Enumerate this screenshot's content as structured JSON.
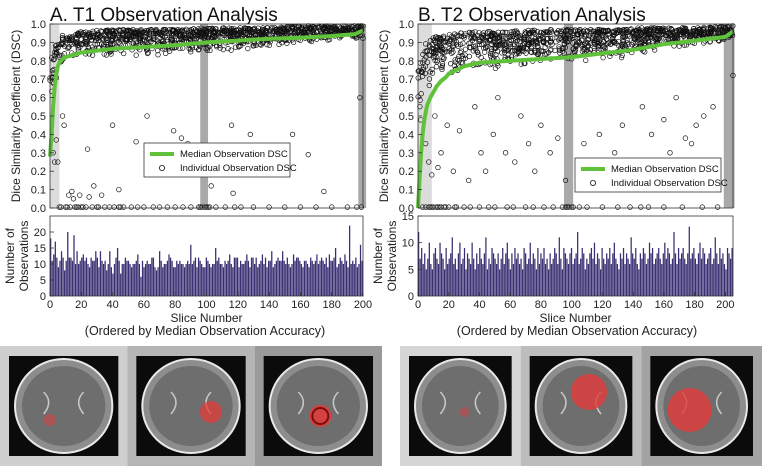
{
  "figure": {
    "sub_caption": "(Ordered by Median Observation Accuracy)"
  },
  "chart_data": [
    {
      "panel": "A",
      "type": "scatter",
      "title": "A. T1 Observation Analysis",
      "xlabel": "Slice Number",
      "ylabel": "Dice Similarity Coefficient (DSC)",
      "xlim": [
        0,
        200
      ],
      "ylim": [
        0,
        1.0
      ],
      "xticks": [
        0,
        20,
        40,
        60,
        80,
        100,
        120,
        140,
        160,
        180,
        200
      ],
      "yticks": [
        0,
        0.1,
        0.2,
        0.3,
        0.4,
        0.5,
        0.6,
        0.7,
        0.8,
        0.9,
        1.0
      ],
      "legend": [
        "Median Observation DSC",
        "Individual Observation DSC"
      ],
      "legend_position": "center",
      "series_colors": {
        "median": "#5fc23a",
        "points": "#111111"
      },
      "shaded_slices": [
        [
          0,
          6
        ],
        [
          96,
          101
        ],
        [
          197,
          202
        ]
      ],
      "median_curve": {
        "x": [
          0,
          1,
          2,
          3,
          4,
          5,
          6,
          8,
          10,
          14,
          20,
          30,
          40,
          60,
          80,
          100,
          120,
          140,
          160,
          180,
          195,
          200
        ],
        "y": [
          0.28,
          0.4,
          0.55,
          0.66,
          0.73,
          0.77,
          0.79,
          0.81,
          0.82,
          0.83,
          0.845,
          0.855,
          0.865,
          0.875,
          0.885,
          0.9,
          0.91,
          0.92,
          0.925,
          0.935,
          0.945,
          0.965
        ]
      },
      "outliers": {
        "x": [
          2,
          3,
          4,
          5,
          8,
          9,
          12,
          14,
          15,
          19,
          24,
          25,
          28,
          33,
          40,
          44,
          55,
          62,
          72,
          79,
          84,
          88,
          103,
          116,
          117,
          128,
          155,
          165,
          175,
          198
        ],
        "y": [
          0.3,
          0.25,
          0.37,
          0.25,
          0.5,
          0.45,
          0.07,
          0.09,
          0.05,
          0.07,
          0.32,
          0.06,
          0.12,
          0.07,
          0.45,
          0.1,
          0.36,
          0.5,
          0.2,
          0.42,
          0.38,
          0.35,
          0.12,
          0.45,
          0.08,
          0.4,
          0.4,
          0.29,
          0.09,
          0.6
        ]
      },
      "zero_points_x": [
        6,
        7,
        10,
        11,
        13,
        16,
        17,
        18,
        20,
        21,
        23,
        27,
        30,
        31,
        35,
        38,
        41,
        44,
        45,
        47,
        52,
        56,
        60,
        66,
        70,
        75,
        80,
        85,
        90,
        95,
        96,
        97,
        99,
        100,
        101,
        102,
        106,
        112,
        118,
        122,
        130,
        140,
        150,
        160,
        170,
        180,
        190,
        196,
        199
      ],
      "scatter_density": {
        "x": [
          0,
          5,
          10,
          20,
          40,
          60,
          80,
          100,
          120,
          140,
          160,
          180,
          200
        ],
        "lower": [
          0.3,
          0.62,
          0.7,
          0.72,
          0.74,
          0.75,
          0.76,
          0.77,
          0.79,
          0.82,
          0.84,
          0.86,
          0.88
        ],
        "upper": [
          0.8,
          0.92,
          0.95,
          0.96,
          0.97,
          0.97,
          0.97,
          0.98,
          0.98,
          0.98,
          0.99,
          0.99,
          0.99
        ]
      },
      "bars": {
        "ylabel": "Number of Observations",
        "ylim": [
          0,
          25
        ],
        "yticks": [
          0,
          5,
          10,
          15,
          20
        ],
        "xticks": [
          0,
          20,
          40,
          60,
          80,
          100,
          120,
          140,
          160,
          180,
          200
        ],
        "color": "#3a2f72",
        "values": [
          18,
          11,
          13,
          17,
          12,
          9,
          11,
          14,
          12,
          8,
          11,
          20,
          12,
          12,
          11,
          19,
          10,
          14,
          10,
          11,
          12,
          13,
          11,
          12,
          10,
          9,
          12,
          11,
          11,
          14,
          12,
          9,
          14,
          11,
          10,
          11,
          8,
          10,
          14,
          9,
          7,
          10,
          12,
          15,
          11,
          7,
          10,
          10,
          12,
          11,
          11,
          10,
          9,
          10,
          10,
          11,
          13,
          10,
          6,
          11,
          9,
          10,
          11,
          10,
          10,
          12,
          12,
          9,
          8,
          9,
          14,
          11,
          9,
          10,
          10,
          11,
          13,
          12,
          11,
          9,
          9,
          11,
          10,
          11,
          10,
          10,
          9,
          10,
          11,
          10,
          16,
          10,
          11,
          12,
          9,
          12,
          11,
          10,
          9,
          9,
          12,
          11,
          10,
          9,
          10,
          10,
          15,
          11,
          12,
          10,
          10,
          9,
          11,
          10,
          11,
          13,
          10,
          9,
          12,
          12,
          12,
          9,
          11,
          10,
          10,
          11,
          13,
          11,
          9,
          12,
          12,
          10,
          12,
          9,
          10,
          11,
          13,
          10,
          12,
          9,
          11,
          11,
          14,
          9,
          10,
          11,
          12,
          11,
          11,
          14,
          11,
          10,
          12,
          10,
          9,
          10,
          13,
          11,
          12,
          12,
          11,
          10,
          9,
          11,
          11,
          10,
          9,
          12,
          11,
          10,
          11,
          13,
          10,
          11,
          12,
          11,
          10,
          12,
          9,
          13,
          11,
          11,
          12,
          15,
          9,
          10,
          12,
          11,
          10,
          13,
          11,
          9,
          22,
          10,
          11,
          10,
          12,
          9,
          10,
          16,
          11
        ]
      }
    },
    {
      "panel": "B",
      "type": "scatter",
      "title": "B. T2 Observation Analysis",
      "xlabel": "Slice Number",
      "ylabel": "Dice Similarity Coefficient (DSC)",
      "xlim": [
        0,
        205
      ],
      "ylim": [
        0,
        1.0
      ],
      "xticks": [
        0,
        20,
        40,
        60,
        80,
        100,
        120,
        140,
        160,
        180,
        200
      ],
      "yticks": [
        0,
        0.1,
        0.2,
        0.3,
        0.4,
        0.5,
        0.6,
        0.7,
        0.8,
        0.9,
        1.0
      ],
      "legend": [
        "Median Observation DSC",
        "Individual Observation DSC"
      ],
      "legend_position": "lower-right",
      "series_colors": {
        "median": "#5fc23a",
        "points": "#111111"
      },
      "shaded_slices": [
        [
          0,
          9
        ],
        [
          95,
          101
        ],
        [
          199,
          206
        ]
      ],
      "median_curve": {
        "x": [
          0,
          1,
          2,
          3,
          4,
          5,
          6,
          8,
          10,
          12,
          15,
          18,
          20,
          25,
          30,
          40,
          60,
          80,
          100,
          120,
          140,
          160,
          180,
          200,
          205
        ],
        "y": [
          0.0,
          0.15,
          0.3,
          0.4,
          0.47,
          0.52,
          0.56,
          0.6,
          0.63,
          0.66,
          0.69,
          0.71,
          0.73,
          0.75,
          0.77,
          0.79,
          0.8,
          0.81,
          0.82,
          0.84,
          0.86,
          0.89,
          0.91,
          0.93,
          0.96
        ]
      },
      "outliers": {
        "x": [
          5,
          7,
          9,
          11,
          13,
          15,
          19,
          23,
          27,
          33,
          37,
          41,
          44,
          49,
          52,
          57,
          63,
          67,
          72,
          76,
          80,
          86,
          91,
          96,
          104,
          108,
          118,
          128,
          133,
          138,
          146,
          152,
          160,
          164,
          168,
          174,
          178,
          181,
          186,
          192,
          205
        ],
        "y": [
          0.35,
          0.25,
          0.18,
          0.5,
          0.22,
          0.3,
          0.45,
          0.2,
          0.42,
          0.15,
          0.55,
          0.3,
          0.2,
          0.4,
          0.6,
          0.3,
          0.25,
          0.5,
          0.35,
          0.2,
          0.45,
          0.3,
          0.38,
          0.15,
          0.22,
          0.35,
          0.4,
          0.3,
          0.45,
          0.25,
          0.55,
          0.4,
          0.48,
          0.3,
          0.6,
          0.38,
          0.35,
          0.45,
          0.5,
          0.55,
          0.72
        ]
      },
      "zero_points_x": [
        3,
        5,
        7,
        8,
        9,
        10,
        12,
        13,
        14,
        15,
        17,
        18,
        20,
        24,
        25,
        30,
        34,
        40,
        46,
        50,
        58,
        62,
        70,
        75,
        82,
        88,
        94,
        96,
        97,
        98,
        100,
        101,
        105,
        110,
        120,
        130,
        138,
        145,
        150,
        160,
        172,
        185,
        195
      ],
      "scatter_density": {
        "x": [
          0,
          5,
          10,
          20,
          40,
          60,
          80,
          100,
          120,
          140,
          160,
          180,
          205
        ],
        "lower": [
          0.1,
          0.45,
          0.55,
          0.6,
          0.62,
          0.65,
          0.66,
          0.68,
          0.7,
          0.74,
          0.78,
          0.82,
          0.86
        ],
        "upper": [
          0.75,
          0.9,
          0.93,
          0.95,
          0.96,
          0.96,
          0.97,
          0.97,
          0.97,
          0.98,
          0.98,
          0.98,
          0.99
        ]
      },
      "bars": {
        "ylabel": "Number of Observations",
        "ylim": [
          0,
          15
        ],
        "yticks": [
          0,
          5,
          10,
          15
        ],
        "xticks": [
          0,
          20,
          40,
          60,
          80,
          100,
          120,
          140,
          160,
          180,
          200
        ],
        "color": "#3a2f72",
        "values": [
          12,
          7,
          9,
          6,
          8,
          5,
          7,
          10,
          6,
          5,
          8,
          9,
          7,
          6,
          10,
          8,
          7,
          5,
          9,
          6,
          7,
          8,
          11,
          6,
          7,
          5,
          8,
          10,
          6,
          7,
          9,
          5,
          8,
          7,
          6,
          10,
          7,
          5,
          8,
          6,
          9,
          7,
          6,
          8,
          11,
          5,
          7,
          6,
          9,
          8,
          7,
          6,
          8,
          5,
          7,
          9,
          6,
          8,
          10,
          7,
          5,
          8,
          6,
          9,
          7,
          8,
          6,
          7,
          5,
          9,
          8,
          6,
          7,
          10,
          6,
          8,
          7,
          5,
          9,
          6,
          8,
          7,
          9,
          6,
          7,
          5,
          8,
          6,
          7,
          9,
          8,
          6,
          11,
          7,
          5,
          9,
          8,
          7,
          6,
          8,
          9,
          6,
          7,
          8,
          12,
          6,
          7,
          9,
          8,
          5,
          7,
          6,
          8,
          9,
          7,
          10,
          6,
          8,
          7,
          5,
          9,
          7,
          6,
          8,
          7,
          9,
          6,
          8,
          10,
          7,
          6,
          5,
          8,
          7,
          9,
          6,
          8,
          7,
          6,
          11,
          8,
          7,
          9,
          6,
          5,
          8,
          7,
          9,
          8,
          6,
          7,
          10,
          8,
          9,
          6,
          7,
          8,
          9,
          7,
          6,
          8,
          10,
          7,
          9,
          8,
          6,
          7,
          12,
          8,
          6,
          9,
          7,
          8,
          9,
          7,
          6,
          8,
          13,
          7,
          8,
          9,
          7,
          6,
          8,
          10,
          7,
          9,
          8,
          6,
          7,
          8,
          9,
          6,
          7,
          11,
          8,
          6,
          9,
          7,
          8,
          6,
          5,
          9,
          8,
          7,
          9
        ]
      }
    }
  ],
  "image_strips": [
    {
      "panel": "A",
      "thumbs": [
        {
          "lesion": "small-faint"
        },
        {
          "lesion": "medium-lateral"
        },
        {
          "lesion": "central-ring"
        }
      ]
    },
    {
      "panel": "B",
      "thumbs": [
        {
          "lesion": "tiny-faint"
        },
        {
          "lesion": "large-frontal"
        },
        {
          "lesion": "large-lobe"
        }
      ]
    }
  ]
}
